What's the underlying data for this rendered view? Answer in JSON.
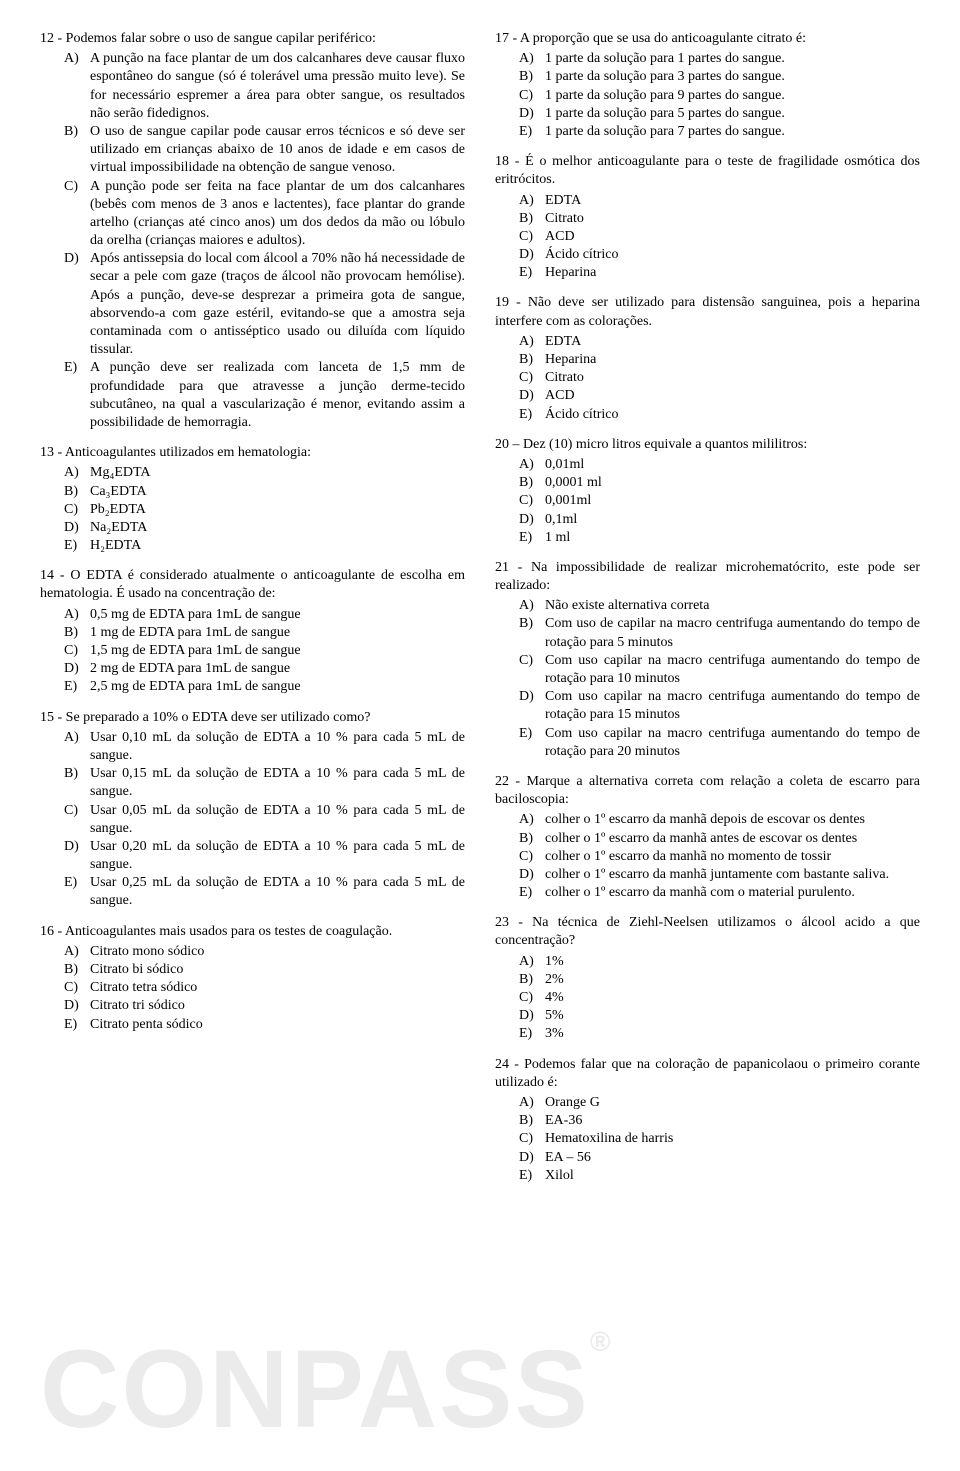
{
  "watermark": "CONPASS",
  "watermark_reg": "®",
  "left": {
    "q12": {
      "text": "12 - Podemos falar sobre o uso de sangue capilar periférico:",
      "A": "A punção na face plantar de um dos calcanhares deve causar fluxo espontâneo do sangue (só é tolerável uma pressão muito leve). Se for necessário espremer a área para obter sangue, os resultados não serão fidedignos.",
      "B": "O uso de sangue capilar pode causar erros técnicos e só deve ser utilizado em crianças abaixo de 10 anos de idade e em casos de virtual impossibilidade na obtenção de sangue venoso.",
      "C": "A punção pode ser feita na face plantar de um dos calcanhares (bebês com menos de 3 anos e lactentes), face plantar do grande artelho (crianças até cinco anos) um dos dedos da mão ou lóbulo da orelha (crianças maiores e adultos).",
      "D": "Após antissepsia do local com álcool a 70% não há necessidade de secar a pele com gaze  (traços de álcool não provocam hemólise). Após a punção, deve-se desprezar a primeira gota de sangue, absorvendo-a com gaze estéril, evitando-se que a amostra seja contaminada com o antisséptico usado ou diluída com líquido tissular.",
      "E": "A punção deve ser realizada com lanceta de 1,5 mm de profundidade para que atravesse a junção derme-tecido subcutâneo, na qual a vascularização é menor, evitando assim a possibilidade de hemorragia."
    },
    "q13": {
      "text": "13 - Anticoagulantes utilizados em hematologia:",
      "A": "Mg₄EDTA",
      "B": "Ca₃EDTA",
      "C": "Pb₂EDTA",
      "D": "Na₂EDTA",
      "E": "H₂EDTA"
    },
    "q14": {
      "text": "14 - O EDTA é considerado atualmente o anticoagulante de escolha em hematologia. É usado na concentração de:",
      "A": "0,5 mg de EDTA para 1mL de sangue",
      "B": "1 mg de EDTA para 1mL de sangue",
      "C": "1,5 mg de EDTA para 1mL de sangue",
      "D": "2 mg de EDTA para 1mL de sangue",
      "E": "2,5 mg de EDTA para 1mL de sangue"
    },
    "q15": {
      "text": "15 - Se preparado a 10% o EDTA deve ser utilizado como?",
      "A": "Usar 0,10 mL da solução de EDTA a 10 % para cada 5 mL de sangue.",
      "B": "Usar 0,15 mL da solução de EDTA a 10 % para cada 5 mL de sangue.",
      "C": "Usar 0,05 mL da solução de EDTA a 10 % para cada 5 mL de sangue.",
      "D": "Usar 0,20 mL da solução de EDTA a 10 % para cada 5 mL de sangue.",
      "E": "Usar 0,25 mL da solução de EDTA a 10 % para cada 5 mL de sangue."
    },
    "q16": {
      "text": "16 - Anticoagulantes mais usados para os testes de coagulação.",
      "A": "Citrato mono sódico",
      "B": "Citrato bi sódico",
      "C": "Citrato tetra sódico",
      "D": "Citrato tri sódico",
      "E": "Citrato penta sódico"
    }
  },
  "right": {
    "q17": {
      "text": "17 - A proporção que se usa do anticoagulante  citrato é:",
      "A": "1 parte da solução para 1 partes do sangue.",
      "B": "1 parte da solução para 3 partes do sangue.",
      "C": "1 parte da solução para 9 partes do sangue.",
      "D": "1 parte da solução para 5 partes do sangue.",
      "E": "1 parte da solução para 7 partes do sangue."
    },
    "q18": {
      "text": "18 - É o melhor anticoagulante para o teste de fragilidade osmótica dos eritrócitos.",
      "A": "EDTA",
      "B": "Citrato",
      "C": "ACD",
      "D": "Ácido cítrico",
      "E": "Heparina"
    },
    "q19": {
      "text": "19 - Não deve ser utilizado para distensão sanguinea, pois a heparina interfere com as colorações.",
      "A": "EDTA",
      "B": "Heparina",
      "C": "Citrato",
      "D": "ACD",
      "E": "Ácido cítrico"
    },
    "q20": {
      "text": "20 – Dez (10) micro litros equivale a quantos mililitros:",
      "A": "0,01ml",
      "B": "0,0001 ml",
      "C": "0,001ml",
      "D": "0,1ml",
      "E": "1 ml"
    },
    "q21": {
      "text": "21 - Na impossibilidade de realizar microhematócrito, este pode ser realizado:",
      "A": "Não existe alternativa correta",
      "B": "Com uso de capilar na macro centrifuga aumentando do tempo de rotação para 5 minutos",
      "C": "Com uso capilar na macro centrifuga aumentando do tempo de rotação para 10 minutos",
      "D": "Com uso capilar na macro centrifuga aumentando do tempo de rotação para 15 minutos",
      "E": "Com uso capilar na macro centrifuga aumentando do tempo de rotação para 20 minutos"
    },
    "q22": {
      "text": "22 - Marque a alternativa correta com relação a coleta de escarro para baciloscopia:",
      "A": "colher o 1º escarro da manhã depois de escovar os dentes",
      "B": "colher o 1º escarro da manhã antes de escovar os dentes",
      "C": "colher o 1º escarro da manhã no momento de tossir",
      "D": "colher o 1º escarro da manhã juntamente com bastante saliva.",
      "E": "colher o 1º escarro da manhã com o material purulento."
    },
    "q23": {
      "text": "23 - Na técnica de Ziehl-Neelsen utilizamos o álcool acido a que concentração?",
      "A": "1%",
      "B": "2%",
      "C": "4%",
      "D": "5%",
      "E": "3%"
    },
    "q24": {
      "text": "24 - Podemos falar que na coloração de papanicolaou o primeiro corante utilizado é:",
      "A": "Orange G",
      "B": "EA-36",
      "C": "Hematoxilina de harris",
      "D": "EA – 56",
      "E": "Xilol"
    }
  }
}
